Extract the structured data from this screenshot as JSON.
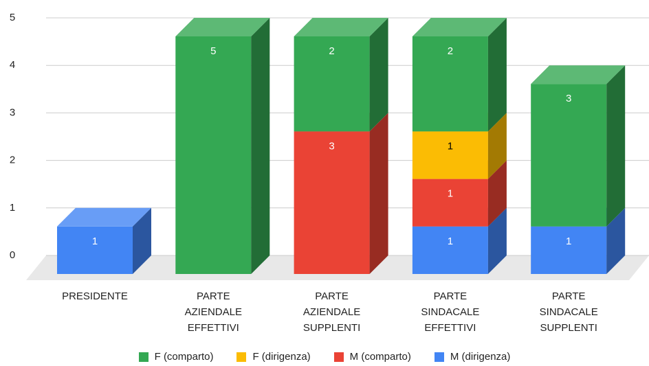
{
  "chart_data": {
    "type": "bar3d_stacked",
    "categories": [
      "PRESIDENTE",
      "PARTE AZIENDALE EFFETTIVI",
      "PARTE AZIENDALE SUPPLENTI",
      "PARTE SINDACALE EFFETTIVI",
      "PARTE SINDACALE SUPPLENTI"
    ],
    "series": [
      {
        "name": "F (comparto)",
        "color": "#34a853",
        "values": [
          null,
          5,
          2,
          2,
          3
        ]
      },
      {
        "name": "F (dirigenza)",
        "color": "#fbbc04",
        "values": [
          null,
          null,
          null,
          1,
          null
        ]
      },
      {
        "name": "M (comparto)",
        "color": "#ea4335",
        "values": [
          null,
          null,
          3,
          1,
          null
        ]
      },
      {
        "name": "M (dirigenza)",
        "color": "#4285f4",
        "values": [
          1,
          null,
          null,
          1,
          1
        ]
      }
    ],
    "ylim": [
      0,
      5
    ],
    "yticks": [
      0,
      1,
      2,
      3,
      4,
      5
    ],
    "grid": true,
    "legend": "bottom"
  }
}
